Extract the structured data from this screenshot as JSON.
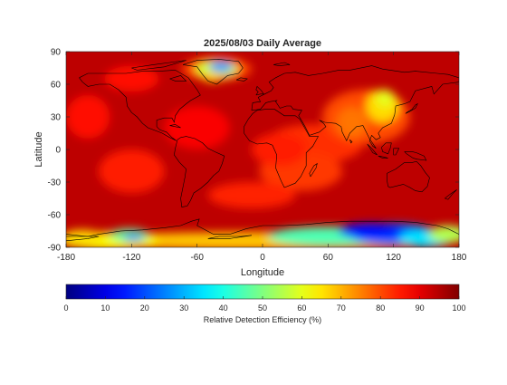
{
  "chart_data": {
    "type": "heatmap",
    "title": "2025/08/03 Daily Average",
    "xlabel": "Longitude",
    "ylabel": "Latitude",
    "xlim": [
      -180,
      180
    ],
    "ylim": [
      -90,
      90
    ],
    "xticks": [
      -180,
      -120,
      -60,
      0,
      60,
      120,
      180
    ],
    "yticks": [
      90,
      60,
      30,
      0,
      -30,
      -60,
      -90
    ],
    "colormap": "jet",
    "colorbar": {
      "label": "Relative Detection Efficiency (%)",
      "range": [
        0,
        100
      ],
      "ticks": [
        0,
        10,
        20,
        30,
        40,
        50,
        60,
        70,
        80,
        90,
        100
      ],
      "placement": "bottom"
    },
    "background_value": 94,
    "features": [
      {
        "lon": 47,
        "lat": 5,
        "rlon": 45,
        "rlat": 18,
        "value": 83
      },
      {
        "lon": 35,
        "lat": -20,
        "rlon": 38,
        "rlat": 18,
        "value": 82
      },
      {
        "lon": 15,
        "lat": 0,
        "rlon": 25,
        "rlat": 15,
        "value": 85
      },
      {
        "lon": 95,
        "lat": 30,
        "rlon": 40,
        "rlat": 25,
        "value": 80
      },
      {
        "lon": 110,
        "lat": 40,
        "rlon": 15,
        "rlat": 15,
        "value": 66
      },
      {
        "lon": 112,
        "lat": 47,
        "rlon": 8,
        "rlat": 8,
        "value": 60
      },
      {
        "lon": 82,
        "lat": 25,
        "rlon": 14,
        "rlat": 14,
        "value": 76
      },
      {
        "lon": -120,
        "lat": -20,
        "rlon": 30,
        "rlat": 20,
        "value": 85
      },
      {
        "lon": -160,
        "lat": 30,
        "rlon": 20,
        "rlat": 20,
        "value": 86
      },
      {
        "lon": -120,
        "lat": 65,
        "rlon": 25,
        "rlat": 12,
        "value": 86
      },
      {
        "lon": -60,
        "lat": 20,
        "rlon": 30,
        "rlat": 20,
        "value": 88
      },
      {
        "lon": -42,
        "lat": 74,
        "rlon": 32,
        "rlat": 11,
        "value": 80
      },
      {
        "lon": -42,
        "lat": 74,
        "rlon": 20,
        "rlat": 8,
        "value": 58
      },
      {
        "lon": -38,
        "lat": 76,
        "rlon": 11,
        "rlat": 5,
        "value": 28
      },
      {
        "lon": -46,
        "lat": 67,
        "rlon": 8,
        "rlat": 5,
        "value": 66
      },
      {
        "lon": -10,
        "lat": -42,
        "rlon": 40,
        "rlat": 12,
        "value": 84
      },
      {
        "lon": 0,
        "lat": -84,
        "rlon": 180,
        "rlat": 8,
        "value": 68
      },
      {
        "lon": -140,
        "lat": -84,
        "rlon": 45,
        "rlat": 8,
        "value": 62
      },
      {
        "lon": -122,
        "lat": -79,
        "rlon": 18,
        "rlat": 6,
        "value": 48
      },
      {
        "lon": -118,
        "lat": -81,
        "rlon": 10,
        "rlat": 3,
        "value": 22
      },
      {
        "lon": -165,
        "lat": -80,
        "rlon": 18,
        "rlat": 6,
        "value": 66
      },
      {
        "lon": 60,
        "lat": -80,
        "rlon": 55,
        "rlat": 9,
        "value": 45
      },
      {
        "lon": 120,
        "lat": -78,
        "rlon": 40,
        "rlat": 10,
        "value": 22
      },
      {
        "lon": 100,
        "lat": -75,
        "rlon": 30,
        "rlat": 7,
        "value": 14
      },
      {
        "lon": 150,
        "lat": -82,
        "rlon": 25,
        "rlat": 8,
        "value": 35
      },
      {
        "lon": 170,
        "lat": -78,
        "rlon": 18,
        "rlat": 8,
        "value": 55
      }
    ]
  }
}
